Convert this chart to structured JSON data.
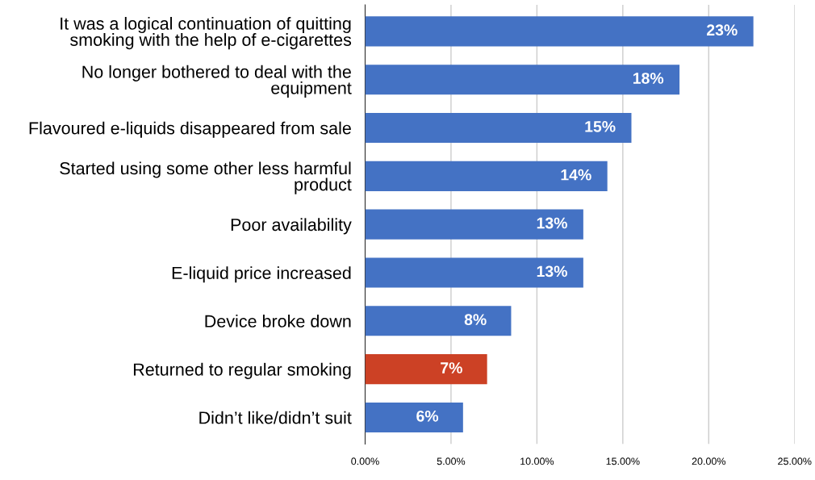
{
  "chart_data": {
    "type": "bar",
    "orientation": "horizontal",
    "categories": [
      "It was a logical continuation of quitting smoking with the help of e-cigarettes",
      "No longer bothered to deal with the equipment",
      "Flavoured e-liquids disappeared from sale",
      "Started using some other less harmful product",
      "Poor availability",
      "E-liquid price increased",
      "Device broke down",
      "Returned to regular smoking",
      "Didn’t like/didn’t suit"
    ],
    "values": [
      22.6,
      18.3,
      15.5,
      14.1,
      12.7,
      12.7,
      8.5,
      7.1,
      5.7
    ],
    "value_labels": [
      "23%",
      "18%",
      "15%",
      "14%",
      "13%",
      "13%",
      "8%",
      "7%",
      "6%"
    ],
    "colors": [
      "#4472c4",
      "#4472c4",
      "#4472c4",
      "#4472c4",
      "#4472c4",
      "#4472c4",
      "#4472c4",
      "#cc4125",
      "#4472c4"
    ],
    "xlim": [
      0,
      25
    ],
    "xticks": [
      {
        "value": 0,
        "label": "0.00%"
      },
      {
        "value": 5,
        "label": "5.00%"
      },
      {
        "value": 10,
        "label": "10.00%"
      },
      {
        "value": 15,
        "label": "15.00%"
      },
      {
        "value": 20,
        "label": "20.00%"
      },
      {
        "value": 25,
        "label": "25.00%"
      }
    ],
    "grid": "x"
  }
}
